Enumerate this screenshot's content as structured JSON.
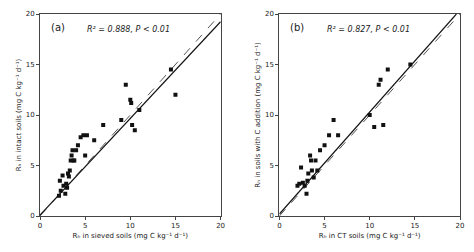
{
  "chart_data": [
    {
      "type": "scatter",
      "annotations": [
        "(a)",
        "R² = 0.888, P < 0.01"
      ],
      "x_label": "Rₕ in sieved soils (mg C kg⁻¹ d⁻¹)",
      "y_label": "Rₕ in intact soils (mg C kg⁻¹ d⁻¹)",
      "xlim": [
        0,
        20
      ],
      "ylim": [
        0,
        20
      ],
      "xticks": [
        0,
        5,
        10,
        15,
        20
      ],
      "yticks": [
        0,
        5,
        10,
        15,
        20
      ],
      "grid": false,
      "series": [
        {
          "type": "line",
          "line_style": "dashed",
          "color": "#555555",
          "x": [
            0,
            20
          ],
          "values": [
            0,
            20
          ]
        },
        {
          "type": "line",
          "line_style": "solid",
          "color": "#111111",
          "x": [
            0,
            20
          ],
          "values": [
            0.08,
            19.24
          ]
        },
        {
          "type": "scatter",
          "marker": "square",
          "color": "#111111",
          "x": [
            2.1,
            2.2,
            2.3,
            2.5,
            2.6,
            2.8,
            2.9,
            3.0,
            3.1,
            3.2,
            3.3,
            3.4,
            3.5,
            3.6,
            3.7,
            3.8,
            4.0,
            4.2,
            4.5,
            4.8,
            5.0,
            5.2,
            6.0,
            7.0,
            9.0,
            9.5,
            10.0,
            10.1,
            10.2,
            10.5,
            11.0,
            14.5,
            15.0
          ],
          "values": [
            2.0,
            3.5,
            2.5,
            4.0,
            3.0,
            2.2,
            3.2,
            2.8,
            4.2,
            3.9,
            4.5,
            5.5,
            6.0,
            6.5,
            5.5,
            5.5,
            6.5,
            7.0,
            7.8,
            8.0,
            6.0,
            8.0,
            7.5,
            9.0,
            9.5,
            13.0,
            11.5,
            11.2,
            9.0,
            8.5,
            10.5,
            14.5,
            12.0
          ]
        }
      ]
    },
    {
      "type": "scatter",
      "annotations": [
        "(b)",
        "R² = 0.827, P < 0.01"
      ],
      "x_label": "Rₕ in CT soils (mg C kg⁻¹ d⁻¹)",
      "y_label": "Rₕ in soils with C addition (mg C kg⁻¹ d⁻¹)",
      "xlim": [
        0,
        20
      ],
      "ylim": [
        0,
        20
      ],
      "xticks": [
        0,
        5,
        10,
        15,
        20
      ],
      "yticks": [
        0,
        5,
        10,
        15,
        20
      ],
      "grid": false,
      "series": [
        {
          "type": "line",
          "line_style": "dashed",
          "color": "#555555",
          "x": [
            0,
            20
          ],
          "values": [
            0,
            20
          ]
        },
        {
          "type": "line",
          "line_style": "solid",
          "color": "#111111",
          "x": [
            0,
            19.6
          ],
          "values": [
            0.2,
            19.996
          ]
        },
        {
          "type": "scatter",
          "marker": "square",
          "color": "#111111",
          "x": [
            2.0,
            2.2,
            2.4,
            2.6,
            2.8,
            3.0,
            3.1,
            3.2,
            3.4,
            3.5,
            3.6,
            3.8,
            4.0,
            4.2,
            4.5,
            5.0,
            5.5,
            6.0,
            6.5,
            10.0,
            10.5,
            11.0,
            11.2,
            11.5,
            12.0,
            14.5
          ],
          "values": [
            3.0,
            3.2,
            4.8,
            3.3,
            3.0,
            2.2,
            3.5,
            4.2,
            6.0,
            5.5,
            4.5,
            3.8,
            5.5,
            4.5,
            6.5,
            7.0,
            8.0,
            9.5,
            8.0,
            10.0,
            8.8,
            13.0,
            13.5,
            9.0,
            14.5,
            15.0
          ]
        }
      ]
    }
  ]
}
